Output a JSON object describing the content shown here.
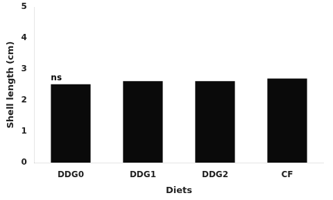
{
  "chart_data": {
    "type": "bar",
    "categories": [
      "DDG0",
      "DDG1",
      "DDG2",
      "CF"
    ],
    "values": [
      2.52,
      2.62,
      2.62,
      2.7
    ],
    "color": "#0a0a0a",
    "xlabel": "Diets",
    "ylabel": "Shell length (cm)",
    "ylim": [
      0,
      5
    ],
    "yticks": [
      0,
      1,
      2,
      3,
      4,
      5
    ],
    "grid": false,
    "annotations": [
      {
        "text": "ns",
        "x": "DDG0",
        "y": 2.58
      }
    ]
  }
}
